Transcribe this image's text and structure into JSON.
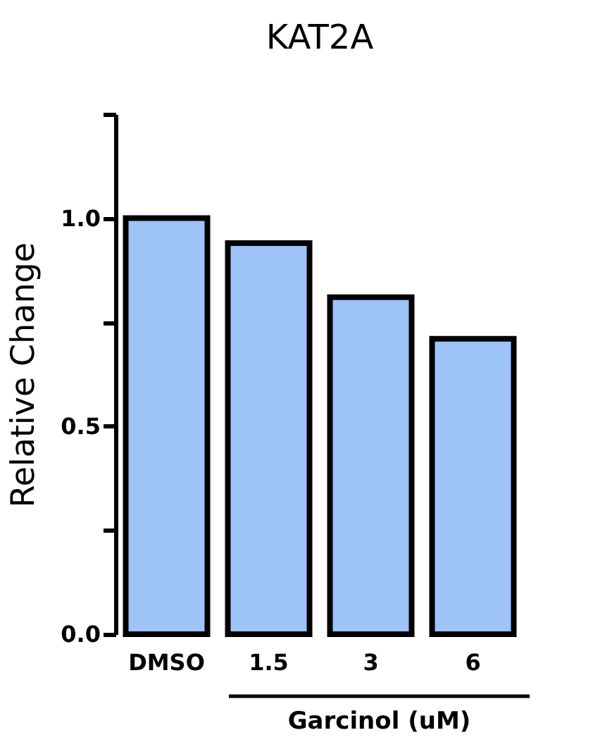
{
  "chart_data": {
    "type": "bar",
    "title": "KAT2A",
    "ylabel": "Relative Change",
    "categories": [
      "DMSO",
      "1.5",
      "3",
      "6"
    ],
    "values": [
      1.0,
      0.94,
      0.81,
      0.71
    ],
    "color": "#9dc3f7",
    "ylim": [
      0,
      1.25
    ],
    "yticks": [
      {
        "value": 0,
        "label": "0.0"
      },
      {
        "value": 0.25,
        "label": null
      },
      {
        "value": 0.5,
        "label": "0.5"
      },
      {
        "value": 0.75,
        "label": null
      },
      {
        "value": 1.0,
        "label": "1.0"
      },
      {
        "value": 1.25,
        "label": null
      }
    ],
    "annotations": [
      "Garcinol (uM)"
    ],
    "grid": false
  }
}
